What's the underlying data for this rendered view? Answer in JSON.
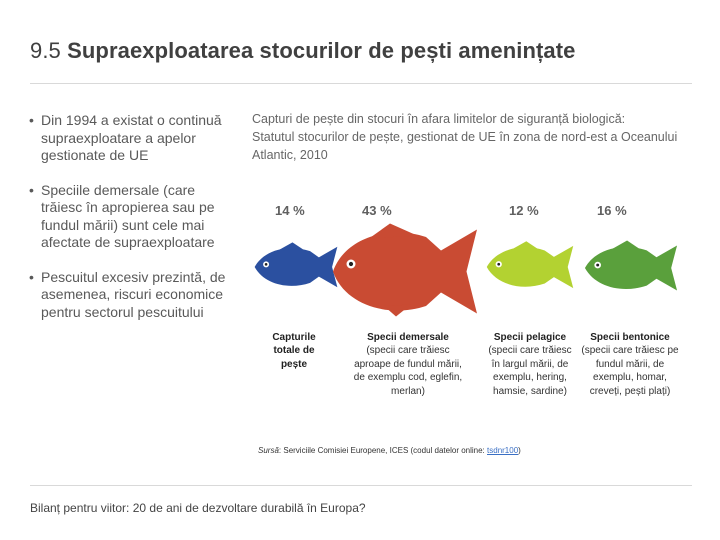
{
  "title": {
    "number": "9.5",
    "text": "Supraexploatarea stocurilor de pești amenințate"
  },
  "bullets": [
    "Din 1994 a existat o continuă supraexploatare a apelor gestionate de UE",
    "Speciile demersale (care trăiesc în apropierea sau pe fundul mării) sunt cele mai afectate de supraexploatare",
    "Pescuitul excesiv prezintă, de asemenea, riscuri economice pentru sectorul pescuitului"
  ],
  "figure": {
    "caption_line1": "Capturi de pește din stocuri în afara limitelor de siguranță biologică:",
    "caption_line2": "Statutul stocurilor de pește, gestionat de UE în zona de nord-est a Oceanului Atlantic, 2010",
    "categories": [
      {
        "percent": "14 %",
        "value": 14,
        "color": "#2b50a0",
        "title": "Capturile totale de pește",
        "description": ""
      },
      {
        "percent": "43 %",
        "value": 43,
        "color": "#c94b33",
        "title": "Specii demersale",
        "description": "(specii care trăiesc aproape de fundul mării, de exemplu cod, eglefin, merlan)"
      },
      {
        "percent": "12 %",
        "value": 12,
        "color": "#b3d231",
        "title": "Specii pelagice",
        "description": "(specii care trăiesc în largul mării, de exemplu, hering, hamsie, sardine)"
      },
      {
        "percent": "16 %",
        "value": 16,
        "color": "#5aa03c",
        "title": "Specii bentonice",
        "description": "(specii care trăiesc pe fundul mării, de exemplu, homar, creveți, pești plați)"
      }
    ]
  },
  "source": {
    "label": "Sursă",
    "text": ": Serviciile Comisiei Europene, ICES (codul datelor online: ",
    "link": "tsdnr100",
    "end": ")"
  },
  "footer": {
    "text": "Bilanț pentru viitor: 20 de ani de dezvoltare durabilă în Europa?"
  }
}
